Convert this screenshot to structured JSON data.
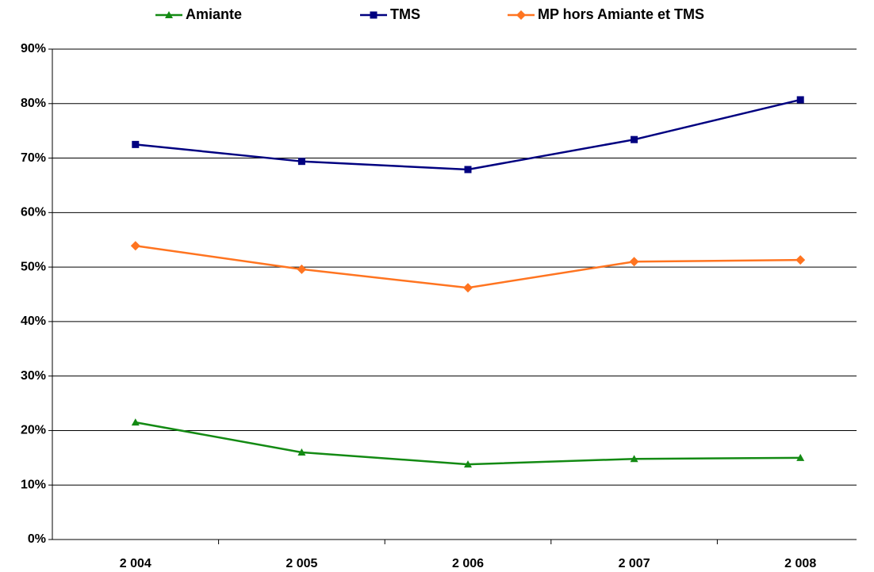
{
  "chart_data": {
    "type": "line",
    "categories": [
      "2 004",
      "2 005",
      "2 006",
      "2 007",
      "2 008"
    ],
    "series": [
      {
        "name": "Amiante",
        "color": "#138a13",
        "values": [
          21.5,
          16.0,
          13.8,
          14.8,
          15.0
        ]
      },
      {
        "name": "TMS",
        "color": "#000080",
        "values": [
          72.5,
          69.4,
          67.9,
          73.4,
          80.7
        ]
      },
      {
        "name": "MP hors Amiante et TMS",
        "color": "#ff7420",
        "values": [
          53.9,
          49.6,
          46.2,
          51.0,
          51.3
        ]
      }
    ],
    "ylim": [
      0,
      90
    ],
    "yticks": [
      {
        "value": 0,
        "label": "0%"
      },
      {
        "value": 10,
        "label": "10%"
      },
      {
        "value": 20,
        "label": "20%"
      },
      {
        "value": 30,
        "label": "30%"
      },
      {
        "value": 40,
        "label": "40%"
      },
      {
        "value": 50,
        "label": "50%"
      },
      {
        "value": 60,
        "label": "60%"
      },
      {
        "value": 70,
        "label": "70%"
      },
      {
        "value": 80,
        "label": "80%"
      },
      {
        "value": 90,
        "label": "90%"
      }
    ],
    "grid": true,
    "legend": "top"
  }
}
